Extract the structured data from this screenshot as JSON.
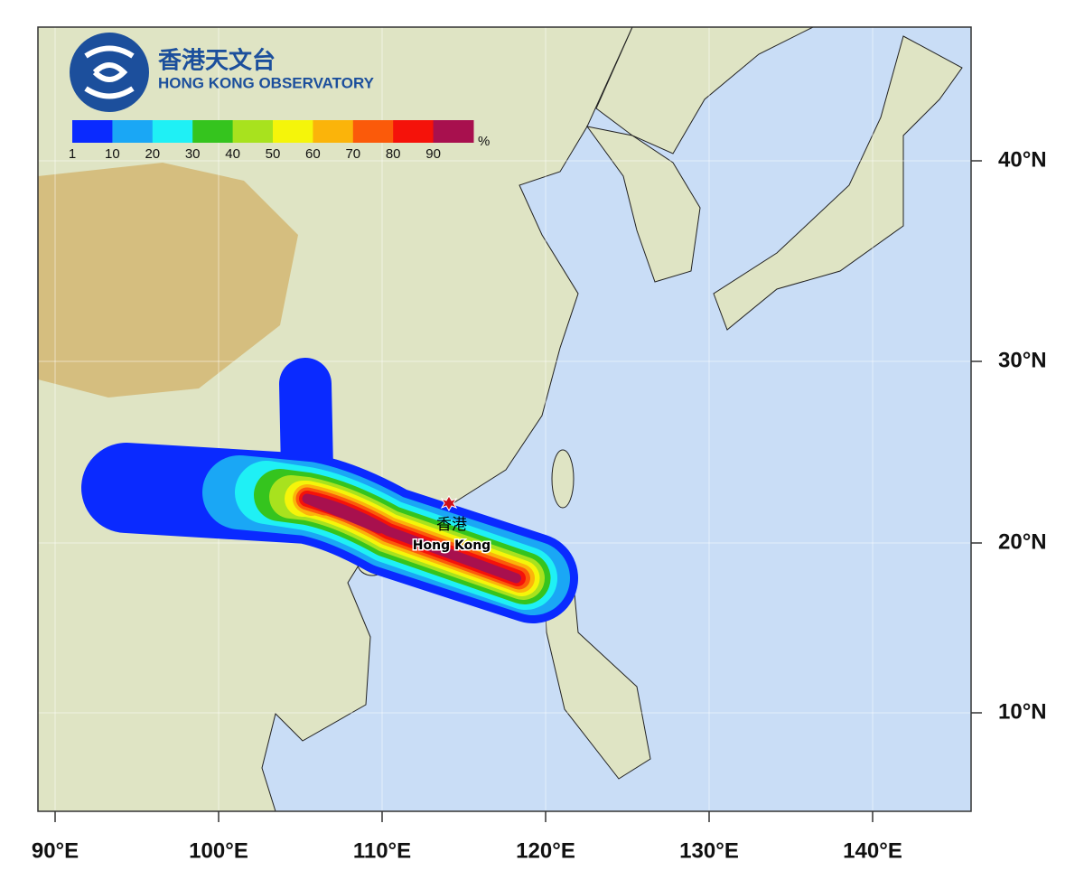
{
  "logo": {
    "chinese": "香港天文台",
    "english": "HONG KONG OBSERVATORY"
  },
  "colorbar": {
    "unit": "%",
    "labels": [
      1,
      10,
      20,
      30,
      40,
      50,
      60,
      70,
      80,
      90
    ],
    "colors": [
      "#0a2aff",
      "#1aa7f5",
      "#1ff0f5",
      "#35c41e",
      "#a8e21e",
      "#f5f50a",
      "#fbb40a",
      "#fb5a0a",
      "#f5120a",
      "#a8104e"
    ]
  },
  "latitude_labels": [
    "40°N",
    "30°N",
    "20°N",
    "10°N"
  ],
  "longitude_labels": [
    "90°E",
    "100°E",
    "110°E",
    "120°E",
    "130°E",
    "140°E"
  ],
  "place": {
    "chinese": "香港",
    "english": "Hong Kong"
  }
}
